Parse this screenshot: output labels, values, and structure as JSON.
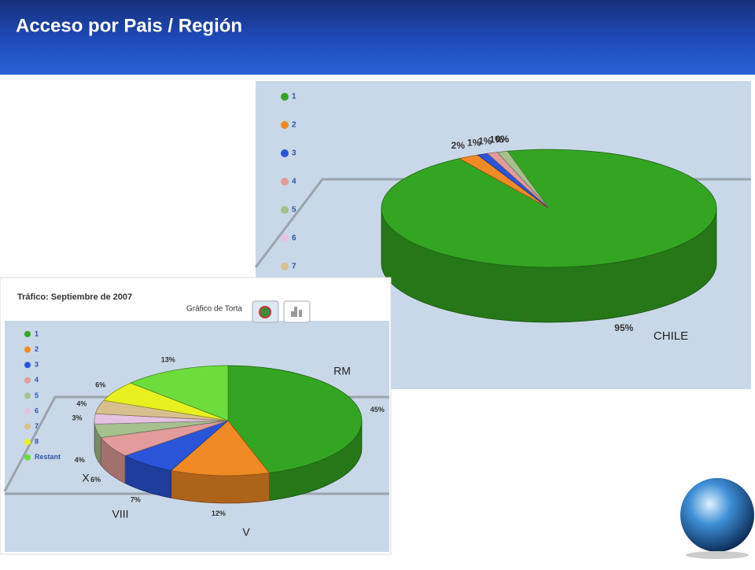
{
  "header": {
    "title": "Acceso por Pais / Región"
  },
  "chart_data": [
    {
      "type": "pie",
      "categories": [
        "1",
        "2",
        "3",
        "4",
        "5",
        "6",
        "7"
      ],
      "values": [
        95,
        2,
        1,
        1,
        1,
        0,
        0
      ],
      "value_labels": [
        "95%",
        "2%",
        "1%",
        "1%",
        "1%",
        "0%",
        "0%"
      ],
      "colors": [
        "#34a522",
        "#f08a24",
        "#2a55d8",
        "#e39b9b",
        "#a6c08e",
        "#e6c2e2",
        "#d8c08e"
      ],
      "annotations": [
        "CHILE"
      ]
    },
    {
      "type": "pie",
      "title": "Tráfico: Septiembre de 2007",
      "subtitle": "Gráfico de Torta",
      "categories": [
        "1",
        "2",
        "3",
        "4",
        "5",
        "6",
        "7",
        "8",
        "Restant"
      ],
      "values": [
        45,
        12,
        7,
        6,
        4,
        3,
        4,
        6,
        13
      ],
      "value_labels": [
        "45%",
        "12%",
        "7%",
        "6%",
        "4%",
        "3%",
        "4%",
        "6%",
        "13%"
      ],
      "colors": [
        "#34a522",
        "#f08a24",
        "#2a55d8",
        "#e39b9b",
        "#a6c08e",
        "#e6c2e2",
        "#d8c08e",
        "#e8f020",
        "#6edc3c"
      ],
      "annotations": [
        "RM",
        "V",
        "VIII",
        "X"
      ]
    }
  ]
}
